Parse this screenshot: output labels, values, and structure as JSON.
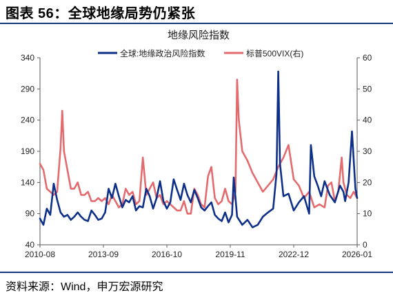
{
  "figure": {
    "title": "图表 56：全球地缘局势仍紧张",
    "source": "资料来源：Wind，申万宏源研究"
  },
  "colors": {
    "rule": "#16357a",
    "series_gpr": "#0d2f8a",
    "series_vix": "#e46a6d",
    "axis": "#555555"
  },
  "chart_data": {
    "type": "line",
    "title": "地缘风险指数",
    "legend_position": "top",
    "grid": false,
    "x_ticks": [
      "2010-08",
      "2013-09",
      "2016-10",
      "2019-11",
      "2022-12",
      "2026-01"
    ],
    "x_range": [
      "2010-08",
      "2026-01"
    ],
    "y_left": {
      "ylim": [
        40,
        340
      ],
      "ticks": [
        40,
        90,
        140,
        190,
        240,
        290,
        340
      ]
    },
    "y_right": {
      "ylim": [
        0,
        60
      ],
      "ticks": [
        0,
        10,
        20,
        30,
        40,
        50,
        60
      ]
    },
    "series": [
      {
        "name": "全球:地缘政治风险指数",
        "axis": "left",
        "x": [
          "2010-08",
          "2010-10",
          "2010-12",
          "2011-02",
          "2011-04",
          "2011-06",
          "2011-08",
          "2011-10",
          "2011-12",
          "2012-02",
          "2012-04",
          "2012-06",
          "2012-08",
          "2012-10",
          "2012-12",
          "2013-02",
          "2013-04",
          "2013-06",
          "2013-08",
          "2013-10",
          "2013-12",
          "2014-02",
          "2014-04",
          "2014-06",
          "2014-08",
          "2014-10",
          "2014-12",
          "2015-02",
          "2015-04",
          "2015-06",
          "2015-08",
          "2015-10",
          "2015-12",
          "2016-02",
          "2016-04",
          "2016-06",
          "2016-08",
          "2016-10",
          "2016-12",
          "2017-02",
          "2017-04",
          "2017-06",
          "2017-08",
          "2017-10",
          "2017-12",
          "2018-02",
          "2018-04",
          "2018-06",
          "2018-08",
          "2018-10",
          "2018-12",
          "2019-02",
          "2019-04",
          "2019-06",
          "2019-08",
          "2019-10",
          "2019-12",
          "2020-01",
          "2020-03",
          "2020-06",
          "2020-09",
          "2020-12",
          "2021-03",
          "2021-06",
          "2021-09",
          "2021-12",
          "2022-02",
          "2022-03",
          "2022-04",
          "2022-06",
          "2022-09",
          "2022-12",
          "2023-03",
          "2023-06",
          "2023-09",
          "2023-10",
          "2023-12",
          "2024-02",
          "2024-04",
          "2024-06",
          "2024-09",
          "2024-12",
          "2025-03",
          "2025-05",
          "2025-06",
          "2025-08",
          "2025-10",
          "2025-12",
          "2026-01"
        ],
        "values": [
          82,
          72,
          98,
          88,
          138,
          112,
          92,
          85,
          88,
          80,
          85,
          92,
          85,
          80,
          78,
          95,
          88,
          80,
          82,
          92,
          130,
          115,
          138,
          118,
          100,
          112,
          108,
          118,
          95,
          102,
          100,
          130,
          118,
          98,
          115,
          142,
          110,
          98,
          108,
          145,
          128,
          112,
          138,
          120,
          108,
          128,
          115,
          100,
          95,
          102,
          108,
          88,
          82,
          78,
          92,
          76,
          88,
          148,
          85,
          72,
          80,
          68,
          72,
          85,
          92,
          98,
          155,
          318,
          170,
          118,
          122,
          95,
          108,
          118,
          90,
          200,
          150,
          135,
          118,
          142,
          120,
          108,
          135,
          125,
          110,
          140,
          222,
          130,
          115
        ]
      },
      {
        "name": "标普500VIX(右)",
        "axis": "right",
        "x": [
          "2010-08",
          "2010-10",
          "2010-12",
          "2011-02",
          "2011-04",
          "2011-06",
          "2011-08",
          "2011-09",
          "2011-10",
          "2011-12",
          "2012-02",
          "2012-04",
          "2012-06",
          "2012-08",
          "2012-10",
          "2012-12",
          "2013-02",
          "2013-04",
          "2013-06",
          "2013-08",
          "2013-10",
          "2013-12",
          "2014-02",
          "2014-04",
          "2014-06",
          "2014-08",
          "2014-10",
          "2014-12",
          "2015-02",
          "2015-04",
          "2015-06",
          "2015-08",
          "2015-10",
          "2015-12",
          "2016-02",
          "2016-04",
          "2016-06",
          "2016-08",
          "2016-10",
          "2016-12",
          "2017-02",
          "2017-04",
          "2017-06",
          "2017-08",
          "2017-10",
          "2017-12",
          "2018-02",
          "2018-04",
          "2018-06",
          "2018-08",
          "2018-10",
          "2018-12",
          "2019-02",
          "2019-04",
          "2019-06",
          "2019-08",
          "2019-10",
          "2019-12",
          "2020-02",
          "2020-03",
          "2020-04",
          "2020-06",
          "2020-09",
          "2020-12",
          "2021-03",
          "2021-06",
          "2021-09",
          "2021-12",
          "2022-03",
          "2022-06",
          "2022-09",
          "2022-12",
          "2023-03",
          "2023-06",
          "2023-09",
          "2023-12",
          "2024-03",
          "2024-06",
          "2024-08",
          "2024-10",
          "2024-12",
          "2025-02",
          "2025-04",
          "2025-05",
          "2025-07",
          "2025-09",
          "2025-11",
          "2026-01"
        ],
        "values": [
          26,
          24,
          18,
          17,
          16,
          17,
          31,
          43,
          30,
          24,
          18,
          18,
          20,
          16,
          16,
          17,
          14,
          14,
          15,
          14,
          15,
          13,
          16,
          14,
          12,
          13,
          18,
          16,
          17,
          13,
          14,
          28,
          16,
          18,
          20,
          15,
          16,
          13,
          14,
          13,
          12,
          11,
          11,
          14,
          10,
          10,
          18,
          16,
          13,
          12,
          22,
          25,
          15,
          13,
          14,
          18,
          14,
          13,
          17,
          53,
          40,
          30,
          27,
          23,
          20,
          17,
          19,
          21,
          25,
          28,
          32,
          21,
          19,
          15,
          17,
          12,
          13,
          12,
          19,
          20,
          14,
          17,
          28,
          20,
          16,
          15,
          17,
          15
        ]
      }
    ]
  }
}
